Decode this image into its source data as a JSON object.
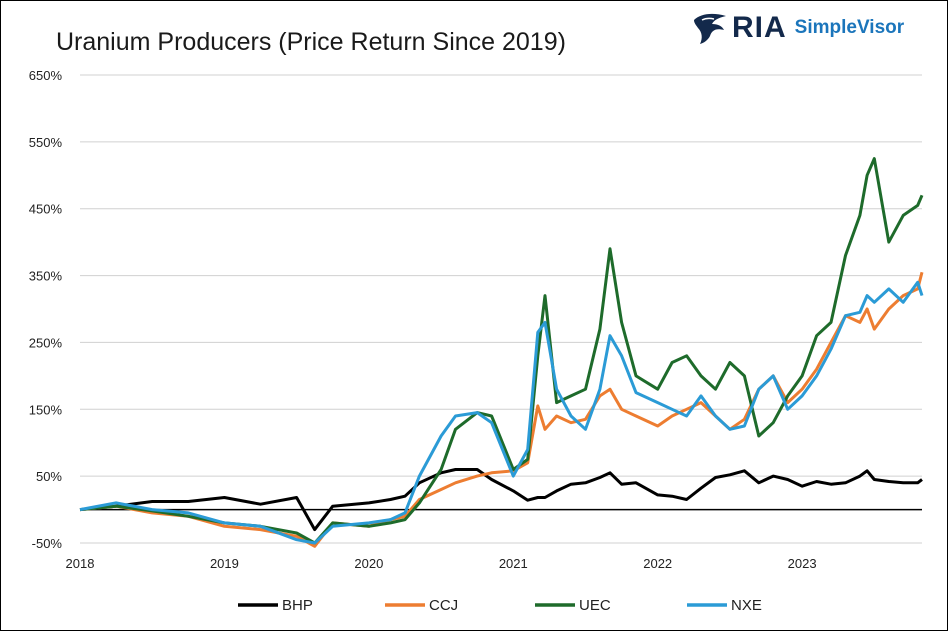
{
  "chart_data": {
    "type": "line",
    "title": "Uranium Producers (Price Return Since 2019)",
    "xlabel": "",
    "ylabel": "",
    "x_ticks": [
      "2018",
      "2019",
      "2020",
      "2021",
      "2022",
      "2023"
    ],
    "y_ticks": [
      "650%",
      "550%",
      "450%",
      "350%",
      "250%",
      "150%",
      "50%",
      "-50%"
    ],
    "xlim": [
      2018.0,
      2023.83
    ],
    "ylim": [
      -50,
      650
    ],
    "grid": "horizontal",
    "legend_position": "bottom",
    "x": [
      2018.0,
      2018.25,
      2018.5,
      2018.75,
      2019.0,
      2019.25,
      2019.5,
      2019.625,
      2019.75,
      2020.0,
      2020.15,
      2020.25,
      2020.35,
      2020.5,
      2020.6,
      2020.75,
      2020.85,
      2021.0,
      2021.1,
      2021.17,
      2021.22,
      2021.3,
      2021.4,
      2021.5,
      2021.6,
      2021.67,
      2021.75,
      2021.85,
      2022.0,
      2022.1,
      2022.2,
      2022.3,
      2022.4,
      2022.5,
      2022.6,
      2022.7,
      2022.8,
      2022.9,
      2023.0,
      2023.1,
      2023.2,
      2023.3,
      2023.4,
      2023.45,
      2023.5,
      2023.6,
      2023.7,
      2023.8,
      2023.83
    ],
    "series": [
      {
        "name": "BHP",
        "color": "#000000",
        "values": [
          0,
          5,
          12,
          12,
          18,
          8,
          18,
          -30,
          5,
          10,
          15,
          20,
          40,
          55,
          60,
          60,
          45,
          28,
          14,
          18,
          18,
          28,
          38,
          40,
          48,
          55,
          38,
          40,
          22,
          20,
          15,
          32,
          48,
          52,
          58,
          40,
          50,
          45,
          35,
          42,
          38,
          40,
          50,
          58,
          45,
          42,
          40,
          40,
          45
        ]
      },
      {
        "name": "CCJ",
        "color": "#ed7d31",
        "values": [
          0,
          5,
          -5,
          -10,
          -25,
          -30,
          -40,
          -55,
          -20,
          -25,
          -15,
          -10,
          15,
          30,
          40,
          50,
          55,
          58,
          70,
          155,
          120,
          140,
          130,
          135,
          170,
          180,
          150,
          140,
          125,
          140,
          150,
          160,
          140,
          120,
          135,
          180,
          200,
          160,
          180,
          210,
          250,
          290,
          280,
          300,
          270,
          300,
          320,
          330,
          355
        ]
      },
      {
        "name": "UEC",
        "color": "#1e6b2b",
        "values": [
          0,
          5,
          -2,
          -10,
          -20,
          -25,
          -35,
          -50,
          -20,
          -25,
          -20,
          -15,
          10,
          60,
          120,
          145,
          140,
          60,
          75,
          230,
          320,
          160,
          170,
          180,
          270,
          390,
          280,
          200,
          180,
          220,
          230,
          200,
          180,
          220,
          200,
          110,
          130,
          170,
          200,
          260,
          280,
          380,
          440,
          500,
          525,
          400,
          440,
          455,
          470
        ]
      },
      {
        "name": "NXE",
        "color": "#2b9bd6",
        "values": [
          0,
          10,
          0,
          -5,
          -20,
          -25,
          -45,
          -50,
          -25,
          -20,
          -15,
          -5,
          50,
          110,
          140,
          145,
          130,
          50,
          90,
          265,
          280,
          180,
          140,
          120,
          180,
          260,
          230,
          175,
          160,
          150,
          140,
          170,
          140,
          120,
          125,
          180,
          200,
          150,
          170,
          200,
          240,
          290,
          295,
          320,
          310,
          330,
          310,
          340,
          320
        ]
      }
    ]
  },
  "logo": {
    "brand": "RIA",
    "product": "SimpleVisor",
    "colors": {
      "brand": "#13294b",
      "product": "#1b75bb"
    }
  }
}
